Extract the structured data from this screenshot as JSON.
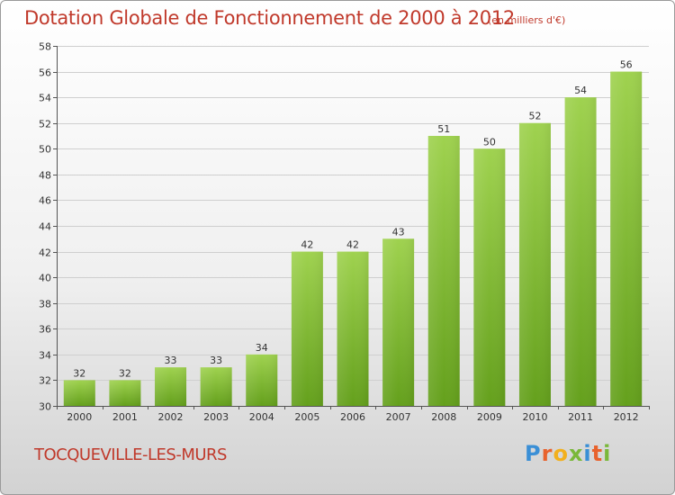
{
  "title": "Dotation Globale de Fonctionnement de 2000 à 2012",
  "subtitle": "(en milliers d'€)",
  "commune": "TOCQUEVILLE-LES-MURS",
  "logo": {
    "text": "Proxiti",
    "letters": [
      {
        "ch": "P",
        "color": "#3a8fd6"
      },
      {
        "ch": "r",
        "color": "#e8622c"
      },
      {
        "ch": "o",
        "color": "#f2b01e"
      },
      {
        "ch": "x",
        "color": "#7ab83a"
      },
      {
        "ch": "i",
        "color": "#3a8fd6"
      },
      {
        "ch": "t",
        "color": "#e8622c"
      },
      {
        "ch": "i",
        "color": "#7ab83a"
      }
    ]
  },
  "colors": {
    "accent": "#c0392b",
    "bar_top": "#9fd24f",
    "bar_bottom": "#64a01c",
    "grid": "#cfcfcf",
    "axis": "#555555"
  },
  "chart_data": {
    "type": "bar",
    "title": "Dotation Globale de Fonctionnement de 2000 à 2012",
    "subtitle": "(en milliers d'€)",
    "categories": [
      "2000",
      "2001",
      "2002",
      "2003",
      "2004",
      "2005",
      "2006",
      "2007",
      "2008",
      "2009",
      "2010",
      "2011",
      "2012"
    ],
    "values": [
      32,
      32,
      33,
      33,
      34,
      42,
      42,
      43,
      51,
      50,
      52,
      54,
      56
    ],
    "data_labels": [
      "32",
      "32",
      "33",
      "33",
      "34",
      "42",
      "42",
      "43",
      "51",
      "50",
      "52",
      "54",
      "56"
    ],
    "ylim": [
      30,
      58
    ],
    "yticks": [
      30,
      32,
      34,
      36,
      38,
      40,
      42,
      44,
      46,
      48,
      50,
      52,
      54,
      56,
      58
    ],
    "grid": true,
    "legend": "none",
    "xlabel": "",
    "ylabel": ""
  }
}
